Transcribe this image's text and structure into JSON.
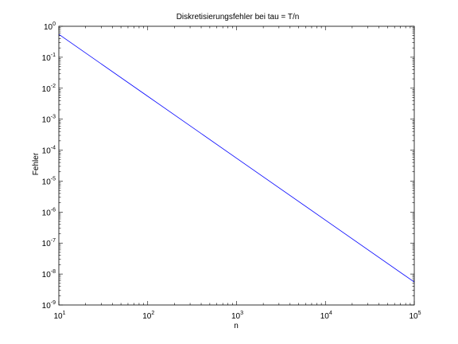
{
  "chart_data": {
    "type": "line",
    "title": "Diskretisierungsfehler bei tau = T/n",
    "xlabel": "n",
    "ylabel": "Fehler",
    "xscale": "log",
    "yscale": "log",
    "xlim": [
      10,
      100000
    ],
    "ylim": [
      1e-09,
      1
    ],
    "grid": false,
    "series": [
      {
        "x": [
          10,
          100,
          1000,
          10000,
          100000
        ],
        "y": [
          0.55,
          0.0055,
          5.5e-05,
          5.5e-07,
          5.5e-09
        ]
      }
    ],
    "series_color": "#0000ff",
    "xticks": [
      {
        "base": "10",
        "exp": "1",
        "value": 10
      },
      {
        "base": "10",
        "exp": "2",
        "value": 100
      },
      {
        "base": "10",
        "exp": "3",
        "value": 1000
      },
      {
        "base": "10",
        "exp": "4",
        "value": 10000
      },
      {
        "base": "10",
        "exp": "5",
        "value": 100000
      }
    ],
    "yticks": [
      {
        "base": "10",
        "exp": "-9",
        "value": 1e-09
      },
      {
        "base": "10",
        "exp": "-8",
        "value": 1e-08
      },
      {
        "base": "10",
        "exp": "-7",
        "value": 1e-07
      },
      {
        "base": "10",
        "exp": "-6",
        "value": 1e-06
      },
      {
        "base": "10",
        "exp": "-5",
        "value": 1e-05
      },
      {
        "base": "10",
        "exp": "-4",
        "value": 0.0001
      },
      {
        "base": "10",
        "exp": "-3",
        "value": 0.001
      },
      {
        "base": "10",
        "exp": "-2",
        "value": 0.01
      },
      {
        "base": "10",
        "exp": "-1",
        "value": 0.1
      },
      {
        "base": "10",
        "exp": "0",
        "value": 1
      }
    ]
  }
}
